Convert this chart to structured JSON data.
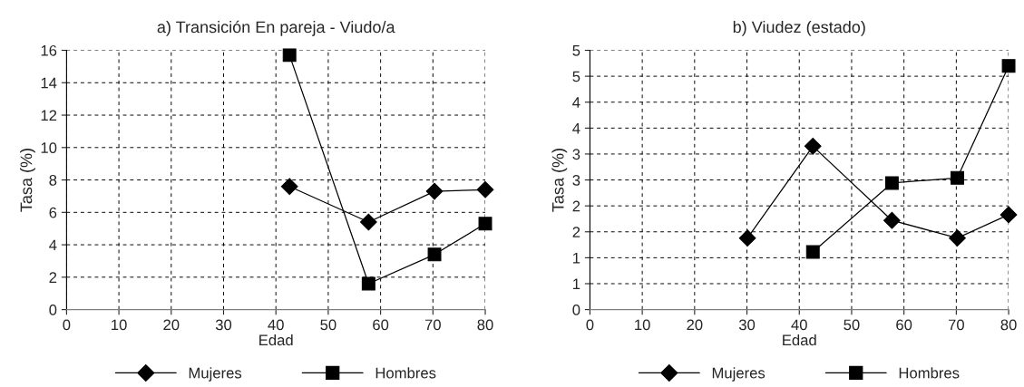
{
  "chart_data": [
    {
      "type": "line",
      "title": "a) Transición En pareja - Viudo/a",
      "xlabel": "Edad",
      "ylabel": "Tasa (%)",
      "xlim": [
        0,
        80
      ],
      "xticks": [
        0,
        10,
        20,
        30,
        40,
        50,
        60,
        70,
        80
      ],
      "ylim": [
        0,
        16
      ],
      "yticks": [
        0,
        2,
        4,
        6,
        8,
        10,
        12,
        14,
        16
      ],
      "grid": true,
      "legend": "bottom",
      "series": [
        {
          "name": "Mujeres",
          "color": "#000000",
          "marker": "diamond",
          "x": [
            42.6,
            57.7,
            70.3,
            80
          ],
          "values": [
            7.6,
            5.4,
            7.3,
            7.4
          ]
        },
        {
          "name": "Hombres",
          "color": "#000000",
          "marker": "square",
          "x": [
            42.6,
            57.7,
            70.3,
            80
          ],
          "values": [
            15.7,
            1.6,
            3.4,
            5.3
          ]
        }
      ]
    },
    {
      "type": "line",
      "title": "b) Viudez (estado)",
      "xlabel": "Edad",
      "ylabel": "Tasa (%)",
      "xlim": [
        0,
        80
      ],
      "xticks": [
        0,
        10,
        20,
        30,
        40,
        50,
        60,
        70,
        80
      ],
      "ylim": [
        0,
        5
      ],
      "yticks": [
        0,
        {
          "value": 0.5,
          "label": "1"
        },
        1,
        {
          "value": 1.5,
          "label": "2"
        },
        2,
        {
          "value": 2.5,
          "label": "3"
        },
        3,
        {
          "value": 3.5,
          "label": "4"
        },
        4,
        {
          "value": 4.5,
          "label": "5"
        },
        5
      ],
      "grid": true,
      "legend": "bottom",
      "series": [
        {
          "name": "Mujeres",
          "color": "#000000",
          "marker": "diamond",
          "x": [
            30.1,
            42.6,
            57.7,
            70.2,
            80
          ],
          "values": [
            1.38,
            3.15,
            1.72,
            1.38,
            1.83
          ]
        },
        {
          "name": "Hombres",
          "color": "#000000",
          "marker": "square",
          "x": [
            42.6,
            57.7,
            70.2,
            80
          ],
          "values": [
            1.11,
            2.44,
            2.54,
            4.7
          ]
        }
      ]
    }
  ]
}
